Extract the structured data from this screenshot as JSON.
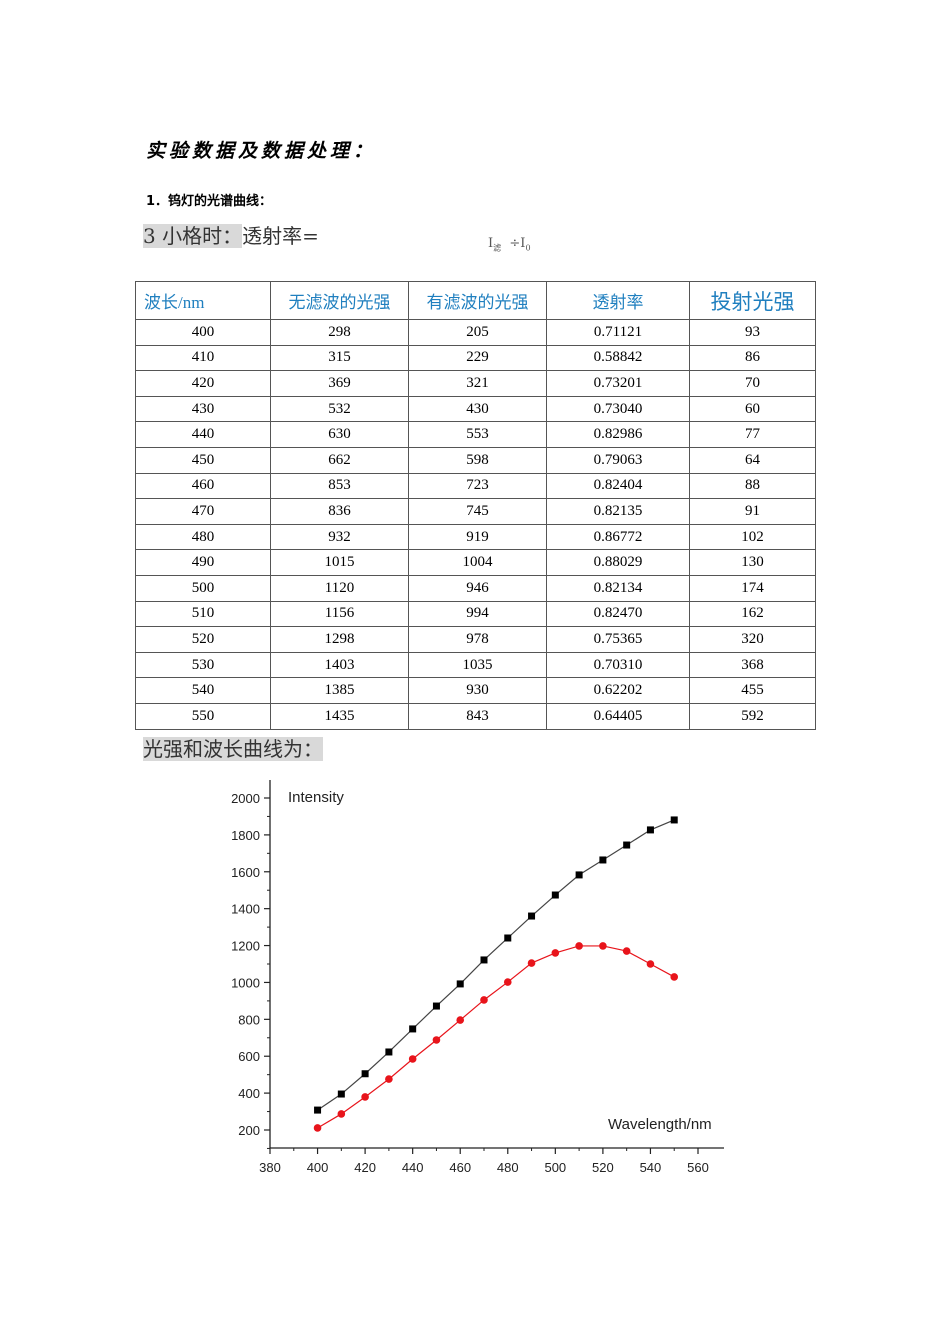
{
  "heading": "实验数据及数据处理：",
  "subheading": "1．钨灯的光谱曲线：",
  "formula_line": {
    "highlight": "3 小格时：",
    "text": "透射率="
  },
  "formula": {
    "numerator": "I",
    "numerator_sub": "滤",
    "op": "÷I",
    "denominator_sub": "0"
  },
  "table": {
    "headers": [
      "波长/nm",
      "无滤波的光强",
      "有滤波的光强",
      "透射率",
      "投射光强"
    ],
    "rows": [
      [
        "400",
        "298",
        "205",
        "0.71121",
        "93"
      ],
      [
        "410",
        "315",
        "229",
        "0.58842",
        "86"
      ],
      [
        "420",
        "369",
        "321",
        "0.73201",
        "70"
      ],
      [
        "430",
        "532",
        "430",
        "0.73040",
        "60"
      ],
      [
        "440",
        "630",
        "553",
        "0.82986",
        "77"
      ],
      [
        "450",
        "662",
        "598",
        "0.79063",
        "64"
      ],
      [
        "460",
        "853",
        "723",
        "0.82404",
        "88"
      ],
      [
        "470",
        "836",
        "745",
        "0.82135",
        "91"
      ],
      [
        "480",
        "932",
        "919",
        "0.86772",
        "102"
      ],
      [
        "490",
        "1015",
        "1004",
        "0.88029",
        "130"
      ],
      [
        "500",
        "1120",
        "946",
        "0.82134",
        "174"
      ],
      [
        "510",
        "1156",
        "994",
        "0.82470",
        "162"
      ],
      [
        "520",
        "1298",
        "978",
        "0.75365",
        "320"
      ],
      [
        "530",
        "1403",
        "1035",
        "0.70310",
        "368"
      ],
      [
        "540",
        "1385",
        "930",
        "0.62202",
        "455"
      ],
      [
        "550",
        "1435",
        "843",
        "0.64405",
        "592"
      ]
    ]
  },
  "caption": "光强和波长曲线为：",
  "chart_data": {
    "type": "line",
    "title": "",
    "ylabel": "Intensity",
    "xlabel": "Wavelength/nm",
    "xlim": [
      380,
      560
    ],
    "ylim": [
      100,
      2050
    ],
    "x_ticks": [
      380,
      400,
      420,
      440,
      460,
      480,
      500,
      520,
      540,
      560
    ],
    "y_ticks": [
      200,
      400,
      600,
      800,
      1000,
      1200,
      1400,
      1600,
      1800,
      2000
    ],
    "grid": false,
    "legend": null,
    "x": [
      400,
      410,
      420,
      430,
      440,
      450,
      460,
      470,
      480,
      490,
      500,
      510,
      520,
      530,
      540,
      550
    ],
    "series": [
      {
        "name": "black-squares",
        "color": "#000000",
        "marker": "square",
        "values": [
          308,
          395,
          505,
          623,
          748,
          872,
          992,
          1122,
          1241,
          1360,
          1474,
          1583,
          1664,
          1745,
          1827,
          1881
        ]
      },
      {
        "name": "red-circles",
        "color": "#e8141b",
        "marker": "circle",
        "values": [
          211,
          287,
          379,
          476,
          585,
          688,
          796,
          905,
          1002,
          1105,
          1160,
          1198,
          1198,
          1170,
          1100,
          1030
        ]
      }
    ]
  }
}
